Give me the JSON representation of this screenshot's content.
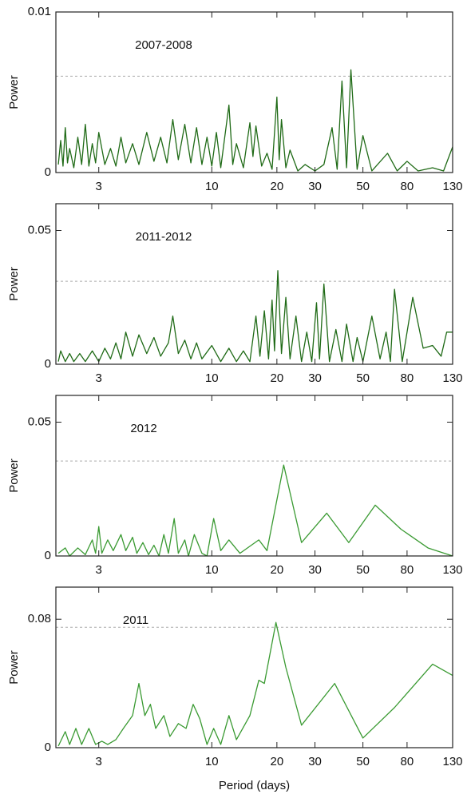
{
  "chart_data": [
    {
      "type": "line",
      "annotation": "2007-2008",
      "ylabel": "Power",
      "xscale": "log",
      "xlim": [
        1.9,
        130
      ],
      "xticks": [
        3,
        10,
        20,
        30,
        50,
        80,
        130
      ],
      "ylim": [
        0,
        0.01
      ],
      "yticks": [
        0,
        0.01
      ],
      "reference_line": 0.006,
      "x": [
        1.95,
        2.0,
        2.05,
        2.1,
        2.15,
        2.2,
        2.3,
        2.4,
        2.5,
        2.6,
        2.7,
        2.8,
        2.9,
        3.0,
        3.2,
        3.4,
        3.6,
        3.8,
        4.0,
        4.3,
        4.6,
        5.0,
        5.4,
        5.8,
        6.2,
        6.6,
        7.0,
        7.5,
        8.0,
        8.5,
        9.0,
        9.5,
        10,
        10.5,
        11,
        12,
        12.5,
        13,
        14,
        15,
        15.5,
        16,
        17,
        18,
        19,
        20,
        20.5,
        21,
        22,
        23,
        25,
        27,
        30,
        33,
        36,
        38,
        40,
        42,
        44,
        47,
        50,
        55,
        65,
        72,
        80,
        90,
        105,
        118,
        130
      ],
      "series": [
        {
          "color": "#1f6a16",
          "values": [
            0.0005,
            0.002,
            0.0004,
            0.0028,
            0.0006,
            0.0015,
            0.0003,
            0.0022,
            0.0005,
            0.003,
            0.0004,
            0.0018,
            0.0006,
            0.0025,
            0.0005,
            0.0015,
            0.0004,
            0.0022,
            0.0006,
            0.0018,
            0.0005,
            0.0025,
            0.0007,
            0.0022,
            0.0006,
            0.0033,
            0.0008,
            0.003,
            0.0006,
            0.0028,
            0.0005,
            0.0022,
            0.0004,
            0.0025,
            0.0003,
            0.0042,
            0.0005,
            0.0018,
            0.0003,
            0.0031,
            0.001,
            0.0029,
            0.0004,
            0.0012,
            0.0002,
            0.0047,
            0.0008,
            0.0033,
            0.0003,
            0.0014,
            0.0001,
            0.0005,
            0.0001,
            0.0005,
            0.0028,
            0.0002,
            0.0057,
            0.0003,
            0.0064,
            0.0002,
            0.0023,
            0.0001,
            0.0012,
            0.0001,
            0.0007,
            0.0001,
            0.0003,
            0.0001,
            0.0016
          ]
        }
      ]
    },
    {
      "type": "line",
      "annotation": "2011-2012",
      "ylabel": "Power",
      "xscale": "log",
      "xlim": [
        1.9,
        130
      ],
      "xticks": [
        3,
        10,
        20,
        30,
        50,
        80,
        130
      ],
      "ylim": [
        0,
        0.06
      ],
      "yticks": [
        0,
        0.05
      ],
      "reference_line": 0.031,
      "x": [
        1.95,
        2.0,
        2.1,
        2.2,
        2.3,
        2.45,
        2.6,
        2.8,
        3.0,
        3.2,
        3.4,
        3.6,
        3.8,
        4.0,
        4.3,
        4.6,
        5.0,
        5.4,
        5.8,
        6.3,
        6.6,
        7.0,
        7.5,
        8.0,
        8.5,
        9.0,
        10,
        11,
        12,
        13,
        14,
        15,
        16,
        16.7,
        17.5,
        18.3,
        19,
        19.5,
        20.2,
        21,
        22,
        23,
        24.5,
        26,
        27.5,
        29,
        30.5,
        31.5,
        33,
        35,
        37.5,
        40,
        42,
        45,
        47,
        50,
        55,
        60,
        64,
        67,
        70,
        76,
        85,
        95,
        105,
        115,
        122,
        130
      ],
      "series": [
        {
          "color": "#1f6a16",
          "values": [
            0.001,
            0.005,
            0.001,
            0.004,
            0.001,
            0.004,
            0.001,
            0.005,
            0.001,
            0.006,
            0.002,
            0.008,
            0.002,
            0.012,
            0.003,
            0.011,
            0.004,
            0.01,
            0.003,
            0.008,
            0.018,
            0.004,
            0.009,
            0.002,
            0.008,
            0.002,
            0.007,
            0.001,
            0.006,
            0.001,
            0.005,
            0.001,
            0.018,
            0.003,
            0.02,
            0.002,
            0.024,
            0.005,
            0.035,
            0.004,
            0.025,
            0.002,
            0.018,
            0.001,
            0.012,
            0.001,
            0.023,
            0.002,
            0.03,
            0.001,
            0.013,
            0.001,
            0.015,
            0.001,
            0.01,
            0.001,
            0.018,
            0.002,
            0.012,
            0.001,
            0.028,
            0.001,
            0.025,
            0.006,
            0.007,
            0.003,
            0.012,
            0.012
          ]
        }
      ]
    },
    {
      "type": "line",
      "annotation": "2012",
      "ylabel": "Power",
      "xscale": "log",
      "xlim": [
        1.9,
        130
      ],
      "xticks": [
        3,
        10,
        20,
        30,
        50,
        80,
        130
      ],
      "ylim": [
        0,
        0.06
      ],
      "yticks": [
        0,
        0.05
      ],
      "reference_line": 0.0355,
      "x": [
        1.95,
        2.1,
        2.2,
        2.4,
        2.6,
        2.8,
        2.9,
        3.0,
        3.1,
        3.3,
        3.5,
        3.8,
        4.0,
        4.3,
        4.5,
        4.8,
        5.1,
        5.4,
        5.7,
        6.0,
        6.3,
        6.7,
        7.0,
        7.5,
        7.8,
        8.3,
        9.0,
        9.5,
        10.2,
        11,
        12,
        13.5,
        16.5,
        18,
        21.5,
        26,
        34,
        43,
        57,
        75,
        100,
        130
      ],
      "series": [
        {
          "color": "#3a9a32",
          "values": [
            0.001,
            0.003,
            0.0,
            0.003,
            0.0005,
            0.006,
            0.001,
            0.011,
            0.001,
            0.006,
            0.002,
            0.008,
            0.002,
            0.007,
            0.001,
            0.005,
            0.0005,
            0.004,
            0.0,
            0.008,
            0.001,
            0.014,
            0.001,
            0.006,
            0.0,
            0.008,
            0.001,
            0.0,
            0.014,
            0.002,
            0.006,
            0.001,
            0.006,
            0.002,
            0.034,
            0.005,
            0.016,
            0.005,
            0.019,
            0.01,
            0.003,
            0.0
          ]
        }
      ]
    },
    {
      "type": "line",
      "annotation": "2011",
      "ylabel": "Power",
      "xlabel": "Period (days)",
      "xscale": "log",
      "xlim": [
        1.9,
        130
      ],
      "xticks": [
        3,
        10,
        20,
        30,
        50,
        80,
        130
      ],
      "ylim": [
        0,
        0.1
      ],
      "yticks": [
        0,
        0.08
      ],
      "reference_line": 0.075,
      "x": [
        1.95,
        2.1,
        2.2,
        2.35,
        2.5,
        2.7,
        2.9,
        3.1,
        3.3,
        3.6,
        3.9,
        4.3,
        4.6,
        4.9,
        5.2,
        5.5,
        6.0,
        6.4,
        7.0,
        7.6,
        8.2,
        8.8,
        9.5,
        10.2,
        11,
        12,
        13,
        15,
        16.5,
        17.5,
        19.8,
        22,
        26,
        37,
        50,
        70,
        105,
        130
      ],
      "series": [
        {
          "color": "#3a9a32",
          "values": [
            0.001,
            0.01,
            0.002,
            0.012,
            0.002,
            0.012,
            0.002,
            0.004,
            0.002,
            0.005,
            0.012,
            0.02,
            0.04,
            0.02,
            0.027,
            0.012,
            0.02,
            0.007,
            0.015,
            0.012,
            0.027,
            0.018,
            0.002,
            0.012,
            0.002,
            0.02,
            0.005,
            0.02,
            0.042,
            0.04,
            0.078,
            0.05,
            0.014,
            0.04,
            0.006,
            0.025,
            0.052,
            0.045
          ]
        }
      ]
    }
  ]
}
